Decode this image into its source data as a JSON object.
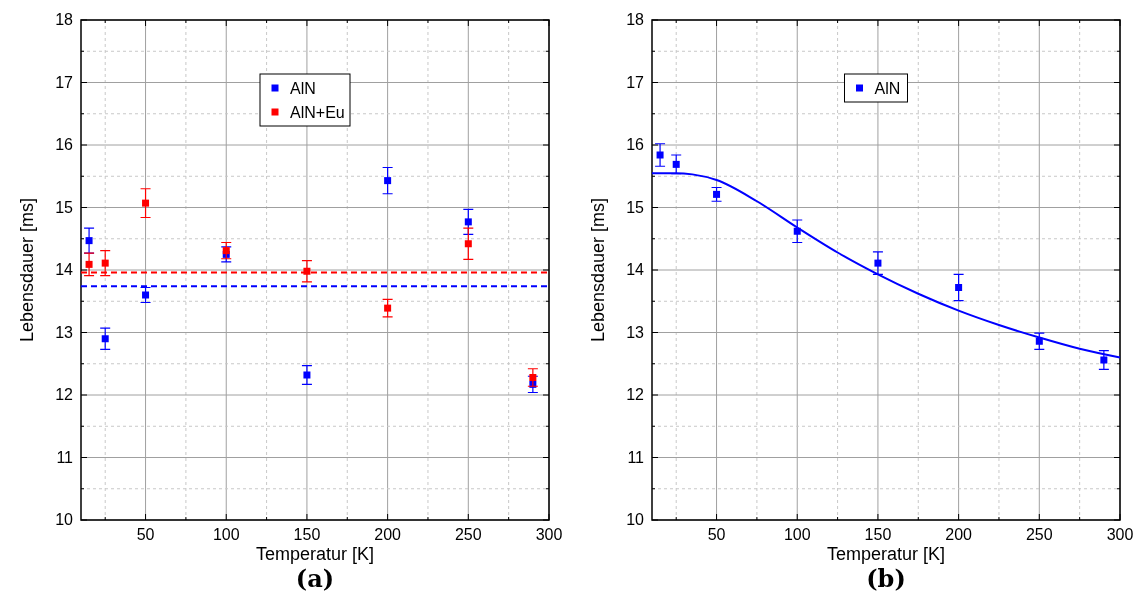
{
  "chart_data": [
    {
      "type": "scatter",
      "xlabel": "Temperatur [K]",
      "ylabel": "Lebensdauer [ms]",
      "annotations": [
        "(a)"
      ],
      "x": [
        15,
        25,
        50,
        100,
        150,
        200,
        250,
        290
      ],
      "series": [
        {
          "name": "AlN",
          "color": "#0000ff",
          "values": [
            14.47,
            12.9,
            13.6,
            14.25,
            12.32,
            15.43,
            14.77,
            12.17
          ],
          "errors": [
            0.2,
            0.17,
            0.12,
            0.12,
            0.15,
            0.21,
            0.2,
            0.13
          ]
        },
        {
          "name": "AlN+Eu",
          "color": "#ff0000",
          "values": [
            14.09,
            14.11,
            15.07,
            14.31,
            13.98,
            13.39,
            14.42,
            12.28
          ],
          "errors": [
            0.18,
            0.2,
            0.23,
            0.13,
            0.17,
            0.14,
            0.25,
            0.14
          ]
        }
      ],
      "ref_lines": [
        {
          "axis": "y",
          "value": 13.96,
          "color": "#ff0000",
          "line_style": "dashed"
        },
        {
          "axis": "y",
          "value": 13.74,
          "color": "#0000ff",
          "line_style": "dashed"
        }
      ],
      "xlim": [
        10,
        300
      ],
      "ylim": [
        10,
        18
      ],
      "xticks": [
        {
          "value": 25,
          "label": null
        },
        50,
        {
          "value": 75,
          "label": null
        },
        100,
        {
          "value": 125,
          "label": null
        },
        150,
        {
          "value": 175,
          "label": null
        },
        200,
        {
          "value": 225,
          "label": null
        },
        250,
        {
          "value": 275,
          "label": null
        },
        300
      ],
      "yticks": [
        10,
        {
          "value": 10.5,
          "label": null
        },
        11,
        {
          "value": 11.5,
          "label": null
        },
        12,
        {
          "value": 12.5,
          "label": null
        },
        13,
        {
          "value": 13.5,
          "label": null
        },
        14,
        {
          "value": 14.5,
          "label": null
        },
        15,
        {
          "value": 15.5,
          "label": null
        },
        16,
        {
          "value": 16.5,
          "label": null
        },
        17,
        {
          "value": 17.5,
          "label": null
        },
        18
      ],
      "grid": true,
      "legend": "top",
      "marker": "square"
    },
    {
      "type": "scatter",
      "xlabel": "Temperatur [K]",
      "ylabel": "Lebensdauer [ms]",
      "annotations": [
        "(b)"
      ],
      "x": [
        15,
        25,
        50,
        100,
        150,
        200,
        250,
        290
      ],
      "series": [
        {
          "name": "AlN",
          "color": "#0000ff",
          "values": [
            15.84,
            15.69,
            15.21,
            14.62,
            14.11,
            13.72,
            12.86,
            12.56
          ],
          "errors": [
            0.18,
            0.15,
            0.11,
            0.18,
            0.18,
            0.21,
            0.13,
            0.15
          ]
        },
        {
          "type": "line",
          "marker": "none",
          "color": "#0000ff",
          "x": [
            10,
            25,
            35,
            50,
            75,
            100,
            125,
            150,
            175,
            200,
            225,
            250,
            275,
            300
          ],
          "values": [
            15.55,
            15.55,
            15.53,
            15.44,
            15.1,
            14.68,
            14.28,
            13.93,
            13.62,
            13.35,
            13.12,
            12.92,
            12.74,
            12.6
          ]
        }
      ],
      "xlim": [
        10,
        300
      ],
      "ylim": [
        10,
        18
      ],
      "xticks": [
        {
          "value": 25,
          "label": null
        },
        50,
        {
          "value": 75,
          "label": null
        },
        100,
        {
          "value": 125,
          "label": null
        },
        150,
        {
          "value": 175,
          "label": null
        },
        200,
        {
          "value": 225,
          "label": null
        },
        250,
        {
          "value": 275,
          "label": null
        },
        300
      ],
      "yticks": [
        10,
        {
          "value": 10.5,
          "label": null
        },
        11,
        {
          "value": 11.5,
          "label": null
        },
        12,
        {
          "value": 12.5,
          "label": null
        },
        13,
        {
          "value": 13.5,
          "label": null
        },
        14,
        {
          "value": 14.5,
          "label": null
        },
        15,
        {
          "value": 15.5,
          "label": null
        },
        16,
        {
          "value": 16.5,
          "label": null
        },
        17,
        {
          "value": 17.5,
          "label": null
        },
        18
      ],
      "grid": true,
      "legend": "top",
      "marker": "square"
    }
  ]
}
